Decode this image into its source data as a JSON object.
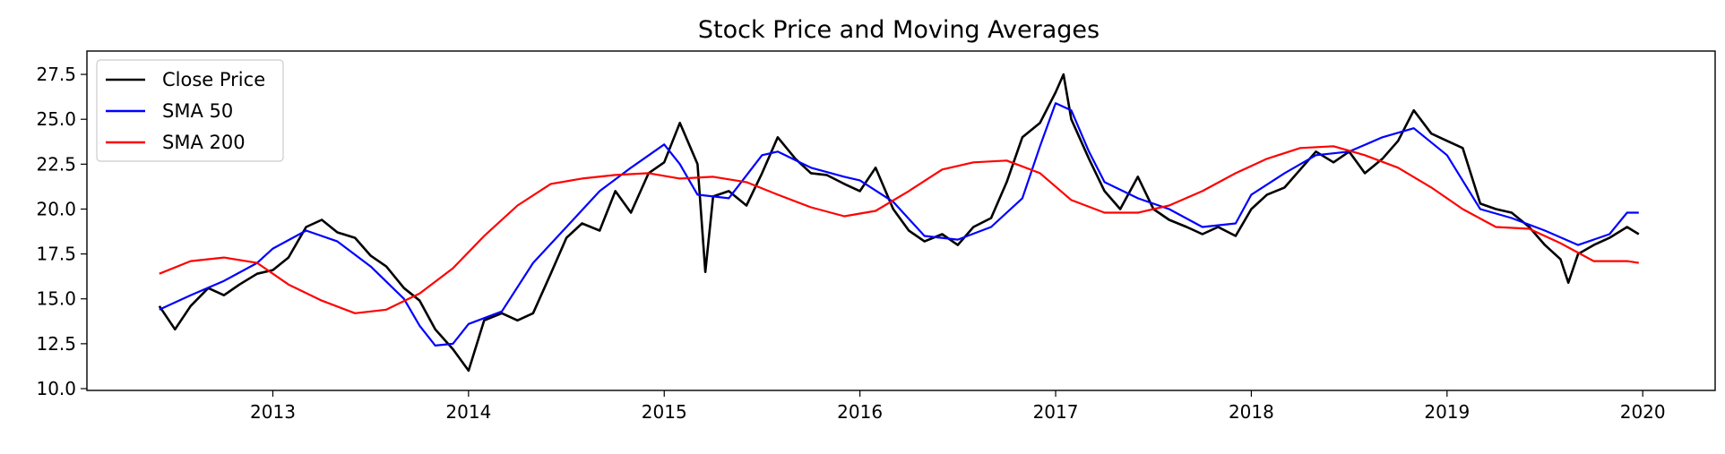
{
  "chart_data": {
    "type": "line",
    "title": "Stock Price and Moving Averages",
    "xlabel": "",
    "ylabel": "",
    "xlim": [
      2012.05,
      2020.37
    ],
    "ylim": [
      9.9,
      28.8
    ],
    "x_ticks": [
      2013,
      2014,
      2015,
      2016,
      2017,
      2018,
      2019,
      2020
    ],
    "x_tick_labels": [
      "2013",
      "2014",
      "2015",
      "2016",
      "2017",
      "2018",
      "2019",
      "2020"
    ],
    "y_ticks": [
      10.0,
      12.5,
      15.0,
      17.5,
      20.0,
      22.5,
      25.0,
      27.5
    ],
    "y_tick_labels": [
      "10.0",
      "12.5",
      "15.0",
      "17.5",
      "20.0",
      "22.5",
      "25.0",
      "27.5"
    ],
    "grid": false,
    "legend_position": "top-left",
    "series": [
      {
        "name": "Close Price",
        "color": "#000000",
        "x": [
          2012.42,
          2012.5,
          2012.58,
          2012.67,
          2012.75,
          2012.83,
          2012.92,
          2013.0,
          2013.08,
          2013.17,
          2013.25,
          2013.33,
          2013.42,
          2013.5,
          2013.58,
          2013.67,
          2013.75,
          2013.83,
          2013.92,
          2014.0,
          2014.08,
          2014.17,
          2014.25,
          2014.33,
          2014.42,
          2014.5,
          2014.58,
          2014.67,
          2014.75,
          2014.83,
          2014.92,
          2015.0,
          2015.08,
          2015.17,
          2015.21,
          2015.25,
          2015.33,
          2015.42,
          2015.5,
          2015.58,
          2015.67,
          2015.75,
          2015.83,
          2015.92,
          2016.0,
          2016.08,
          2016.17,
          2016.25,
          2016.33,
          2016.42,
          2016.5,
          2016.58,
          2016.67,
          2016.75,
          2016.83,
          2016.92,
          2017.0,
          2017.04,
          2017.08,
          2017.17,
          2017.25,
          2017.33,
          2017.42,
          2017.5,
          2017.58,
          2017.67,
          2017.75,
          2017.83,
          2017.92,
          2018.0,
          2018.08,
          2018.17,
          2018.25,
          2018.33,
          2018.42,
          2018.5,
          2018.58,
          2018.67,
          2018.75,
          2018.83,
          2018.92,
          2019.0,
          2019.08,
          2019.17,
          2019.25,
          2019.33,
          2019.42,
          2019.5,
          2019.58,
          2019.62,
          2019.67,
          2019.75,
          2019.83,
          2019.92,
          2019.98
        ],
        "values": [
          14.6,
          13.3,
          14.6,
          15.6,
          15.2,
          15.8,
          16.4,
          16.6,
          17.3,
          19.0,
          19.4,
          18.7,
          18.4,
          17.4,
          16.8,
          15.6,
          14.9,
          13.3,
          12.2,
          11.0,
          13.8,
          14.2,
          13.8,
          14.2,
          16.4,
          18.4,
          19.2,
          18.8,
          21.0,
          19.8,
          22.0,
          22.6,
          24.8,
          22.5,
          16.5,
          20.7,
          21.0,
          20.2,
          22.0,
          24.0,
          22.8,
          22.0,
          21.9,
          21.4,
          21.0,
          22.3,
          20.0,
          18.8,
          18.2,
          18.6,
          18.0,
          19.0,
          19.5,
          21.5,
          24.0,
          24.8,
          26.5,
          27.5,
          25.0,
          22.8,
          21.0,
          20.0,
          21.8,
          20.0,
          19.4,
          19.0,
          18.6,
          19.0,
          18.5,
          20.0,
          20.8,
          21.2,
          22.2,
          23.2,
          22.6,
          23.2,
          22.0,
          22.8,
          23.8,
          25.5,
          24.2,
          23.8,
          23.4,
          20.3,
          20.0,
          19.8,
          19.0,
          18.0,
          17.2,
          15.9,
          17.5,
          18.0,
          18.4,
          19.0,
          18.6
        ]
      },
      {
        "name": "SMA 50",
        "color": "#0000ff",
        "x": [
          2012.42,
          2012.58,
          2012.75,
          2012.92,
          2013.0,
          2013.17,
          2013.33,
          2013.5,
          2013.67,
          2013.75,
          2013.83,
          2013.92,
          2014.0,
          2014.17,
          2014.33,
          2014.5,
          2014.67,
          2014.83,
          2015.0,
          2015.08,
          2015.17,
          2015.33,
          2015.5,
          2015.58,
          2015.75,
          2015.92,
          2016.0,
          2016.17,
          2016.33,
          2016.5,
          2016.67,
          2016.83,
          2016.92,
          2017.0,
          2017.08,
          2017.17,
          2017.25,
          2017.42,
          2017.58,
          2017.75,
          2017.92,
          2018.0,
          2018.17,
          2018.33,
          2018.5,
          2018.67,
          2018.83,
          2019.0,
          2019.17,
          2019.33,
          2019.5,
          2019.67,
          2019.83,
          2019.92,
          2019.98
        ],
        "values": [
          14.4,
          15.2,
          16.0,
          17.0,
          17.8,
          18.8,
          18.2,
          16.8,
          15.0,
          13.5,
          12.4,
          12.5,
          13.6,
          14.3,
          17.0,
          19.0,
          21.0,
          22.3,
          23.6,
          22.5,
          20.8,
          20.6,
          23.0,
          23.2,
          22.3,
          21.8,
          21.6,
          20.4,
          18.5,
          18.3,
          19.0,
          20.6,
          23.5,
          25.9,
          25.5,
          23.2,
          21.5,
          20.6,
          20.0,
          19.0,
          19.2,
          20.8,
          22.0,
          23.0,
          23.2,
          24.0,
          24.5,
          23.0,
          20.0,
          19.5,
          18.8,
          18.0,
          18.6,
          19.8,
          19.8
        ]
      },
      {
        "name": "SMA 200",
        "color": "#ff0000",
        "x": [
          2012.42,
          2012.58,
          2012.75,
          2012.92,
          2013.08,
          2013.25,
          2013.42,
          2013.58,
          2013.75,
          2013.92,
          2014.08,
          2014.25,
          2014.42,
          2014.58,
          2014.75,
          2014.92,
          2015.08,
          2015.25,
          2015.42,
          2015.58,
          2015.75,
          2015.92,
          2016.08,
          2016.25,
          2016.42,
          2016.58,
          2016.75,
          2016.92,
          2017.08,
          2017.25,
          2017.42,
          2017.58,
          2017.75,
          2017.92,
          2018.08,
          2018.25,
          2018.42,
          2018.58,
          2018.75,
          2018.92,
          2019.08,
          2019.25,
          2019.42,
          2019.58,
          2019.75,
          2019.92,
          2019.98
        ],
        "values": [
          16.4,
          17.1,
          17.3,
          17.0,
          15.8,
          14.9,
          14.2,
          14.4,
          15.3,
          16.7,
          18.5,
          20.2,
          21.4,
          21.7,
          21.9,
          22.0,
          21.7,
          21.8,
          21.5,
          20.8,
          20.1,
          19.6,
          19.9,
          21.0,
          22.2,
          22.6,
          22.7,
          22.0,
          20.5,
          19.8,
          19.8,
          20.2,
          21.0,
          22.0,
          22.8,
          23.4,
          23.5,
          23.0,
          22.3,
          21.2,
          20.0,
          19.0,
          18.9,
          18.1,
          17.1,
          17.1,
          17.0
        ]
      }
    ]
  }
}
